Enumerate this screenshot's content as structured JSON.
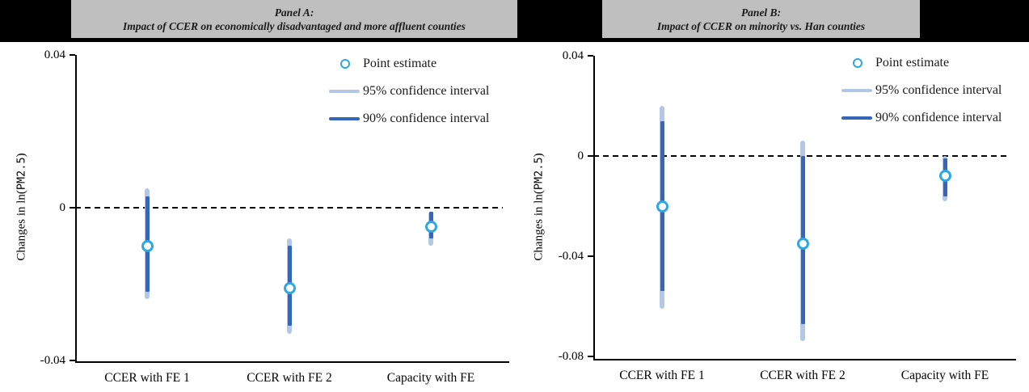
{
  "header": {
    "panel_a": {
      "line1": "Panel A:",
      "line2": "Impact of CCER on economically disadvantaged and more affluent counties"
    },
    "panel_b": {
      "line1": "Panel B:",
      "line2": "Impact of CCER on minority vs. Han counties"
    }
  },
  "colors": {
    "banner_bg": "#000000",
    "title_bg": "#bfbfbf",
    "ci95": "#b4c7e7",
    "ci90": "#3566b8",
    "point_ring": "#2ea7e3",
    "axis": "#000000"
  },
  "chart_data": [
    {
      "type": "scatter",
      "title": "Panel A: Impact of CCER on economically disadvantaged and more affluent counties",
      "categories": [
        "CCER with FE 1",
        "CCER with FE 2",
        "Capacity with FE"
      ],
      "xlabel": "",
      "ylabel": "Changes in ln(PM2.5)",
      "ylim": [
        -0.04,
        0.04
      ],
      "yticks": [
        0.04,
        0,
        -0.04
      ],
      "ytick_labels": [
        "0.04",
        "0",
        "-0.04"
      ],
      "grid": false,
      "zero_line_dashed": true,
      "legend_position": "top-right",
      "legend": [
        "Point estimate",
        "95% confidence interval",
        "90% confidence interval"
      ],
      "series": [
        {
          "name": "Point estimate",
          "values": [
            -0.01,
            -0.021,
            -0.005
          ]
        },
        {
          "name": "95% confidence interval",
          "intervals": [
            [
              -0.024,
              0.005
            ],
            [
              -0.033,
              -0.008
            ],
            [
              -0.01,
              -0.001
            ]
          ]
        },
        {
          "name": "90% confidence interval",
          "intervals": [
            [
              -0.022,
              0.003
            ],
            [
              -0.031,
              -0.01
            ],
            [
              -0.008,
              -0.001
            ]
          ]
        }
      ]
    },
    {
      "type": "scatter",
      "title": "Panel B: Impact of CCER on minority vs. Han counties",
      "categories": [
        "CCER with FE 1",
        "CCER with FE 2",
        "Capacity with FE"
      ],
      "xlabel": "",
      "ylabel": "Changes in ln(PM2.5)",
      "ylim": [
        -0.08,
        0.04
      ],
      "yticks": [
        0.04,
        0,
        -0.04,
        -0.08
      ],
      "ytick_labels": [
        "0.04",
        "0",
        "-0.04",
        "-0.08"
      ],
      "grid": false,
      "zero_line_dashed": true,
      "legend_position": "top-right",
      "legend": [
        "Point estimate",
        "95% confidence interval",
        "90% confidence interval"
      ],
      "series": [
        {
          "name": "Point estimate",
          "values": [
            -0.02,
            -0.035,
            -0.008
          ]
        },
        {
          "name": "95% confidence interval",
          "intervals": [
            [
              -0.061,
              0.02
            ],
            [
              -0.074,
              0.006
            ],
            [
              -0.018,
              0.0
            ]
          ]
        },
        {
          "name": "90% confidence interval",
          "intervals": [
            [
              -0.054,
              0.014
            ],
            [
              -0.067,
              0.0
            ],
            [
              -0.016,
              -0.001
            ]
          ]
        }
      ]
    }
  ]
}
